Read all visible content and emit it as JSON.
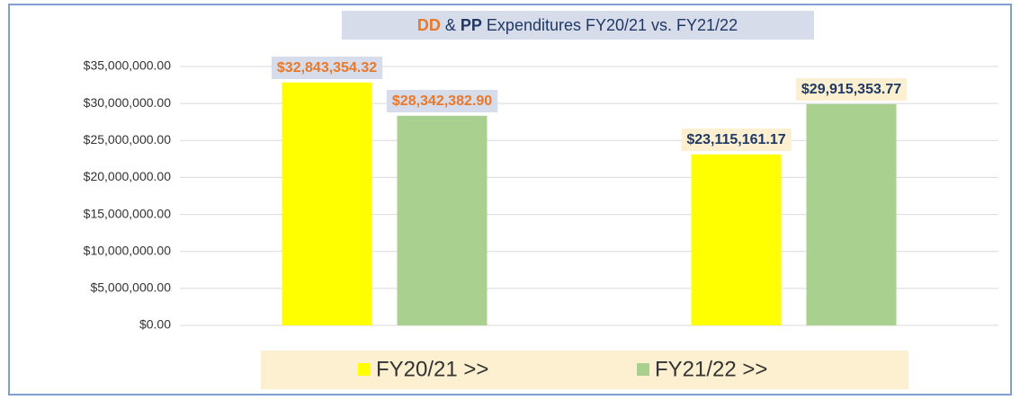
{
  "chart_data": {
    "type": "bar",
    "title_parts": [
      {
        "text": "DD",
        "color": "#e8782a"
      },
      {
        "text": " & ",
        "color": "#1f3864"
      },
      {
        "text": "PP",
        "color": "#1f3864"
      },
      {
        "text": " Expenditures  FY20/21 vs. FY21/22",
        "color": "#1f3864"
      }
    ],
    "categories": [
      null,
      null
    ],
    "series": [
      {
        "name": "FY20/21 >>",
        "color": "#ffff00",
        "values": [
          32843354.32,
          23115161.17
        ],
        "value_labels": [
          "$32,843,354.32",
          "$23,115,161.17"
        ]
      },
      {
        "name": "FY21/22 >>",
        "color": "#a9d08e",
        "values": [
          28342382.9,
          29915353.77
        ],
        "value_labels": [
          "$28,342,382.90",
          "$29,915,353.77"
        ]
      }
    ],
    "label_colors": [
      "#e8782a",
      "#1f3864"
    ],
    "label_backgrounds": [
      "#d6dcea",
      "#fdf0d0"
    ],
    "ylim": [
      0,
      35000000
    ],
    "yticks": [
      {
        "value": 0,
        "label": "$0.00"
      },
      {
        "value": 5000000,
        "label": "$5,000,000.00"
      },
      {
        "value": 10000000,
        "label": "$10,000,000.00"
      },
      {
        "value": 15000000,
        "label": "$15,000,000.00"
      },
      {
        "value": 20000000,
        "label": "$20,000,000.00"
      },
      {
        "value": 25000000,
        "label": "$25,000,000.00"
      },
      {
        "value": 30000000,
        "label": "$30,000,000.00"
      },
      {
        "value": 35000000,
        "label": "$35,000,000.00"
      }
    ],
    "grid": true,
    "legend": "bottom"
  }
}
